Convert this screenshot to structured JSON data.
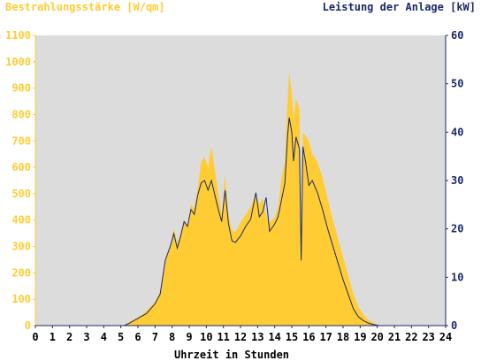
{
  "chart_data": {
    "type": "area",
    "ylabel_left": "Bestrahlungsstärke [W/qm]",
    "ylabel_right": "Leistung der Anlage [kW]",
    "xlabel": "Uhrzeit in Stunden",
    "x_range": [
      0,
      24
    ],
    "y_left_range": [
      0,
      1100
    ],
    "y_right_range": [
      0,
      60
    ],
    "x_ticks": [
      "0",
      "1",
      "2",
      "3",
      "4",
      "5",
      "6",
      "7",
      "8",
      "9",
      "10",
      "11",
      "12",
      "13",
      "14",
      "15",
      "16",
      "17",
      "18",
      "19",
      "20",
      "21",
      "22",
      "23",
      "24"
    ],
    "y_left_ticks": [
      "0",
      "100",
      "200",
      "300",
      "400",
      "500",
      "600",
      "700",
      "800",
      "900",
      "1000",
      "1100"
    ],
    "y_right_ticks": [
      "0",
      "10",
      "20",
      "30",
      "40",
      "50",
      "60"
    ],
    "grid": false,
    "series": [
      {
        "axis": "left",
        "color": "#ffcc33",
        "points": [
          [
            0,
            0
          ],
          [
            5.2,
            0
          ],
          [
            5.5,
            15
          ],
          [
            6.0,
            30
          ],
          [
            6.5,
            55
          ],
          [
            7.0,
            90
          ],
          [
            7.3,
            130
          ],
          [
            7.6,
            250
          ],
          [
            7.9,
            300
          ],
          [
            8.1,
            370
          ],
          [
            8.3,
            310
          ],
          [
            8.5,
            350
          ],
          [
            8.7,
            400
          ],
          [
            8.9,
            380
          ],
          [
            9.1,
            460
          ],
          [
            9.3,
            440
          ],
          [
            9.5,
            520
          ],
          [
            9.7,
            620
          ],
          [
            9.9,
            640
          ],
          [
            10.1,
            600
          ],
          [
            10.3,
            680
          ],
          [
            10.5,
            590
          ],
          [
            10.7,
            500
          ],
          [
            10.9,
            420
          ],
          [
            11.1,
            570
          ],
          [
            11.3,
            420
          ],
          [
            11.5,
            360
          ],
          [
            11.7,
            355
          ],
          [
            12.0,
            390
          ],
          [
            12.3,
            420
          ],
          [
            12.6,
            450
          ],
          [
            12.9,
            500
          ],
          [
            13.1,
            460
          ],
          [
            13.3,
            480
          ],
          [
            13.5,
            420
          ],
          [
            13.7,
            390
          ],
          [
            14.0,
            410
          ],
          [
            14.2,
            450
          ],
          [
            14.4,
            560
          ],
          [
            14.6,
            620
          ],
          [
            14.75,
            850
          ],
          [
            14.85,
            960
          ],
          [
            15.0,
            880
          ],
          [
            15.1,
            780
          ],
          [
            15.25,
            860
          ],
          [
            15.45,
            820
          ],
          [
            15.55,
            260
          ],
          [
            15.65,
            730
          ],
          [
            15.8,
            720
          ],
          [
            16.0,
            700
          ],
          [
            16.2,
            650
          ],
          [
            16.5,
            620
          ],
          [
            16.8,
            560
          ],
          [
            17.1,
            480
          ],
          [
            17.4,
            400
          ],
          [
            17.7,
            330
          ],
          [
            18.0,
            260
          ],
          [
            18.3,
            190
          ],
          [
            18.6,
            120
          ],
          [
            18.9,
            70
          ],
          [
            19.2,
            40
          ],
          [
            19.5,
            20
          ],
          [
            19.8,
            10
          ],
          [
            20.1,
            0
          ],
          [
            24,
            0
          ]
        ]
      },
      {
        "axis": "right",
        "color": "#1a2a6c",
        "points": [
          [
            0,
            0
          ],
          [
            5.2,
            0
          ],
          [
            5.5,
            0.5
          ],
          [
            6.0,
            1.5
          ],
          [
            6.5,
            2.5
          ],
          [
            7.0,
            4.5
          ],
          [
            7.3,
            6.5
          ],
          [
            7.6,
            13.5
          ],
          [
            7.9,
            16.5
          ],
          [
            8.1,
            19
          ],
          [
            8.3,
            16
          ],
          [
            8.5,
            18.5
          ],
          [
            8.7,
            21.5
          ],
          [
            8.9,
            20.5
          ],
          [
            9.1,
            24
          ],
          [
            9.3,
            23
          ],
          [
            9.5,
            27
          ],
          [
            9.7,
            29.5
          ],
          [
            9.9,
            30
          ],
          [
            10.1,
            28
          ],
          [
            10.3,
            30
          ],
          [
            10.5,
            27
          ],
          [
            10.7,
            24
          ],
          [
            10.9,
            21.5
          ],
          [
            11.1,
            28
          ],
          [
            11.3,
            21
          ],
          [
            11.5,
            17.5
          ],
          [
            11.7,
            17.2
          ],
          [
            12.0,
            18.5
          ],
          [
            12.3,
            20.5
          ],
          [
            12.6,
            22
          ],
          [
            12.9,
            27.5
          ],
          [
            13.1,
            22.5
          ],
          [
            13.3,
            23.5
          ],
          [
            13.5,
            26.5
          ],
          [
            13.7,
            19.5
          ],
          [
            14.0,
            21
          ],
          [
            14.2,
            22.5
          ],
          [
            14.4,
            26
          ],
          [
            14.6,
            29.5
          ],
          [
            14.75,
            39
          ],
          [
            14.85,
            43
          ],
          [
            15.0,
            40
          ],
          [
            15.1,
            34
          ],
          [
            15.25,
            39
          ],
          [
            15.45,
            36.5
          ],
          [
            15.55,
            13.5
          ],
          [
            15.65,
            37
          ],
          [
            15.8,
            34
          ],
          [
            16.0,
            29
          ],
          [
            16.2,
            30
          ],
          [
            16.5,
            27.5
          ],
          [
            16.8,
            24
          ],
          [
            17.1,
            20
          ],
          [
            17.4,
            16.5
          ],
          [
            17.7,
            13
          ],
          [
            18.0,
            9.5
          ],
          [
            18.3,
            6.5
          ],
          [
            18.6,
            3.5
          ],
          [
            18.9,
            1.8
          ],
          [
            19.2,
            1
          ],
          [
            19.5,
            0.5
          ],
          [
            19.8,
            0.2
          ],
          [
            20.1,
            0
          ],
          [
            24,
            0
          ]
        ]
      }
    ]
  }
}
